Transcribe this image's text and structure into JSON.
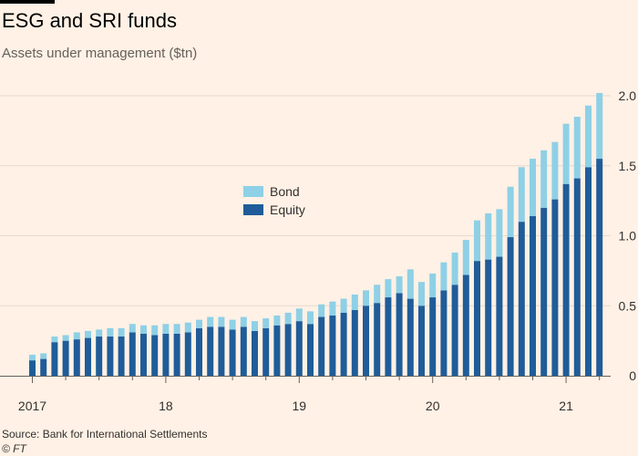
{
  "header": {
    "title": "ESG and SRI funds",
    "subtitle": "Assets under management ($tn)"
  },
  "footer": {
    "source": "Source: Bank for International Settlements",
    "copyright": "© FT"
  },
  "colors": {
    "background": "#fff1e5",
    "equity": "#1f5c99",
    "bond": "#8ed0e6",
    "gridline": "#e6d9ce"
  },
  "chart_data": {
    "type": "bar",
    "stacked": true,
    "x_start": "2017-01",
    "x_interval": "month",
    "x_tick_labels": [
      "2017",
      "18",
      "19",
      "20",
      "21"
    ],
    "y_tick_labels": [
      "0",
      "0.5",
      "1.0",
      "1.5",
      "2.0"
    ],
    "ylim": [
      0,
      2.0
    ],
    "grid": true,
    "y_axis_side": "right",
    "legend_position": "center-left",
    "series": [
      {
        "name": "Equity",
        "values": [
          0.11,
          0.12,
          0.24,
          0.25,
          0.26,
          0.27,
          0.28,
          0.28,
          0.28,
          0.31,
          0.3,
          0.29,
          0.3,
          0.3,
          0.31,
          0.34,
          0.35,
          0.35,
          0.33,
          0.35,
          0.32,
          0.34,
          0.36,
          0.37,
          0.39,
          0.37,
          0.42,
          0.43,
          0.45,
          0.47,
          0.5,
          0.52,
          0.56,
          0.59,
          0.55,
          0.5,
          0.56,
          0.61,
          0.65,
          0.72,
          0.82,
          0.83,
          0.85,
          0.99,
          1.1,
          1.14,
          1.2,
          1.26,
          1.37,
          1.41,
          1.49,
          1.55
        ]
      },
      {
        "name": "Bond",
        "values": [
          0.04,
          0.04,
          0.04,
          0.04,
          0.05,
          0.05,
          0.05,
          0.06,
          0.06,
          0.06,
          0.06,
          0.07,
          0.07,
          0.07,
          0.07,
          0.06,
          0.07,
          0.07,
          0.07,
          0.07,
          0.07,
          0.07,
          0.07,
          0.08,
          0.09,
          0.09,
          0.09,
          0.1,
          0.1,
          0.11,
          0.11,
          0.13,
          0.13,
          0.12,
          0.21,
          0.17,
          0.17,
          0.2,
          0.23,
          0.25,
          0.29,
          0.33,
          0.34,
          0.36,
          0.39,
          0.41,
          0.41,
          0.41,
          0.43,
          0.44,
          0.44,
          0.47
        ]
      }
    ]
  }
}
